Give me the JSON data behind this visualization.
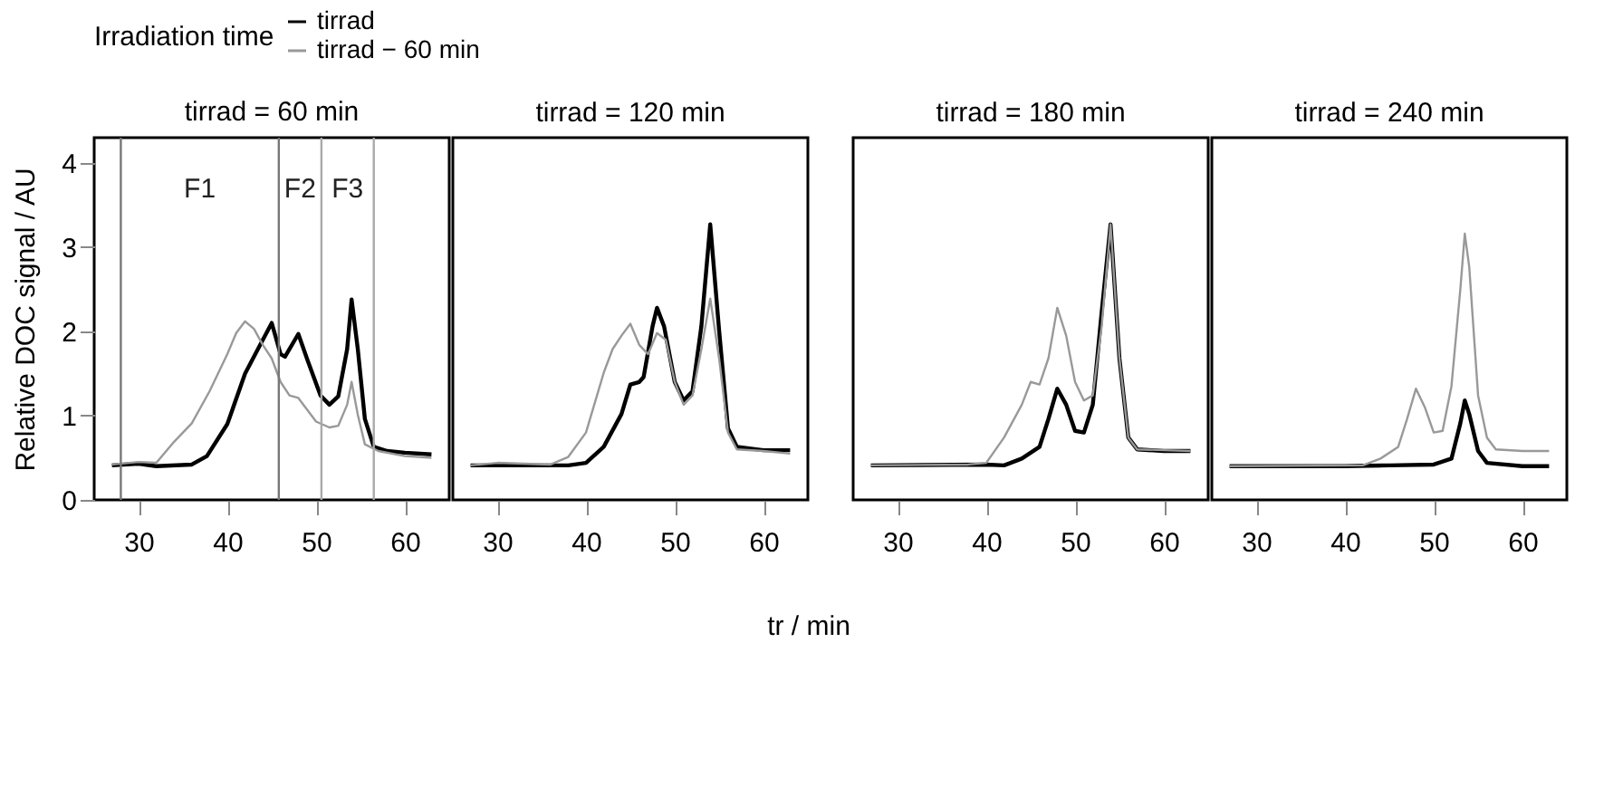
{
  "chart_data": [
    {
      "type": "line",
      "title": "tirrad = 60 min",
      "ylabel": "Relative DOC signal / AU",
      "legend_title": "Irradiation time",
      "legend": "top right",
      "xlim": [
        25,
        65
      ],
      "ylim": [
        0,
        4.3
      ],
      "xticks": [
        30,
        40,
        50,
        60
      ],
      "yticks": [
        0,
        1,
        2,
        3,
        4
      ],
      "series": [
        {
          "name": "tirrad",
          "color": "#000000",
          "x": [
            27,
            30,
            32,
            36,
            37.7,
            40,
            42,
            43.5,
            45,
            46,
            46.5,
            48,
            49,
            50.5,
            51.5,
            52.5,
            53.5,
            54,
            54.7,
            55.5,
            56.5,
            58,
            60,
            63
          ],
          "values": [
            0.41,
            0.43,
            0.4,
            0.42,
            0.52,
            0.9,
            1.5,
            1.8,
            2.1,
            1.73,
            1.7,
            1.97,
            1.67,
            1.24,
            1.13,
            1.23,
            1.79,
            2.38,
            1.79,
            0.96,
            0.63,
            0.58,
            0.56,
            0.54
          ]
        },
        {
          "name": "tirrad − 60 min",
          "color": "#999999",
          "x": [
            27,
            30,
            32,
            34,
            36,
            38,
            40,
            41,
            42,
            43,
            44,
            45,
            46,
            47,
            48,
            49,
            50,
            51.5,
            52.5,
            53.5,
            54,
            54.7,
            55.5,
            57,
            60,
            63
          ],
          "values": [
            0.42,
            0.45,
            0.44,
            0.69,
            0.91,
            1.29,
            1.73,
            1.98,
            2.12,
            2.03,
            1.84,
            1.68,
            1.4,
            1.24,
            1.21,
            1.07,
            0.93,
            0.86,
            0.88,
            1.13,
            1.4,
            1.01,
            0.66,
            0.58,
            0.52,
            0.5
          ]
        }
      ],
      "ref_lines": [
        {
          "axis": "x",
          "value": 28,
          "color": "#777777"
        },
        {
          "axis": "x",
          "value": 45.8,
          "color": "#777777"
        },
        {
          "axis": "x",
          "value": 50.6,
          "color": "#aaaaaa"
        },
        {
          "axis": "x",
          "value": 56.5,
          "color": "#aaaaaa"
        }
      ],
      "annotations": [
        "F1",
        "F2",
        "F3"
      ]
    },
    {
      "type": "line",
      "title": "tirrad = 120 min",
      "xlabel": "tr / min",
      "tick_labels": "x",
      "xlim": [
        25,
        65
      ],
      "ylim": [
        0,
        4.3
      ],
      "xticks": [
        30,
        40,
        50,
        60
      ],
      "series": [
        {
          "color": "#000000",
          "x": [
            27,
            38,
            40,
            42,
            44,
            45,
            46,
            46.5,
            47.5,
            48,
            48.8,
            50,
            51,
            52,
            53,
            54,
            55,
            56,
            57,
            60,
            63
          ],
          "values": [
            0.41,
            0.41,
            0.44,
            0.63,
            1.02,
            1.37,
            1.4,
            1.46,
            2.06,
            2.28,
            2.06,
            1.4,
            1.18,
            1.29,
            2.06,
            3.27,
            2.01,
            0.85,
            0.63,
            0.59,
            0.59
          ]
        },
        {
          "color": "#999999",
          "x": [
            27,
            30,
            36,
            38,
            40,
            42,
            43,
            44,
            45,
            46,
            47,
            48,
            49,
            50,
            51,
            52,
            53,
            54,
            55,
            56,
            57,
            60,
            63
          ],
          "values": [
            0.41,
            0.44,
            0.42,
            0.51,
            0.8,
            1.51,
            1.79,
            1.95,
            2.09,
            1.84,
            1.73,
            1.98,
            1.9,
            1.4,
            1.13,
            1.24,
            1.79,
            2.39,
            1.68,
            0.8,
            0.6,
            0.58,
            0.55
          ]
        }
      ]
    },
    {
      "type": "line",
      "title": "tirrad = 180 min",
      "tick_labels": "x",
      "xlim": [
        25,
        65
      ],
      "ylim": [
        0,
        4.3
      ],
      "xticks": [
        30,
        40,
        50,
        60
      ],
      "series": [
        {
          "color": "#000000",
          "x": [
            27,
            40,
            42,
            44,
            46,
            47,
            48,
            49,
            50,
            51,
            52,
            53,
            54,
            55,
            56,
            57,
            60,
            63
          ],
          "values": [
            0.41,
            0.42,
            0.41,
            0.49,
            0.63,
            0.96,
            1.32,
            1.13,
            0.82,
            0.8,
            1.13,
            2.23,
            3.27,
            1.68,
            0.74,
            0.6,
            0.58,
            0.58
          ]
        },
        {
          "color": "#999999",
          "x": [
            27,
            38,
            40,
            42,
            44,
            45,
            46,
            47,
            48,
            49,
            50,
            51,
            52,
            53,
            54,
            55,
            56,
            57,
            60,
            63
          ],
          "values": [
            0.41,
            0.42,
            0.44,
            0.74,
            1.13,
            1.4,
            1.37,
            1.68,
            2.28,
            1.95,
            1.4,
            1.18,
            1.24,
            2.06,
            3.27,
            1.68,
            0.74,
            0.6,
            0.59,
            0.58
          ]
        }
      ]
    },
    {
      "type": "line",
      "title": "tirrad = 240 min",
      "tick_labels": "x",
      "xlim": [
        25,
        65
      ],
      "ylim": [
        0,
        4.3
      ],
      "xticks": [
        30,
        40,
        50,
        60
      ],
      "series": [
        {
          "color": "#000000",
          "x": [
            27,
            40,
            45,
            50,
            52,
            53,
            53.5,
            54,
            55,
            56,
            60,
            63
          ],
          "values": [
            0.4,
            0.4,
            0.41,
            0.42,
            0.49,
            0.91,
            1.18,
            1.02,
            0.58,
            0.44,
            0.4,
            0.4
          ]
        },
        {
          "color": "#999999",
          "x": [
            27,
            42,
            44,
            46,
            47,
            48,
            49,
            50,
            51,
            52,
            53,
            53.5,
            54,
            55,
            56,
            57,
            60,
            63
          ],
          "values": [
            0.4,
            0.41,
            0.49,
            0.63,
            0.96,
            1.32,
            1.1,
            0.8,
            0.82,
            1.35,
            2.5,
            3.16,
            2.77,
            1.24,
            0.74,
            0.6,
            0.58,
            0.58
          ]
        }
      ]
    }
  ]
}
